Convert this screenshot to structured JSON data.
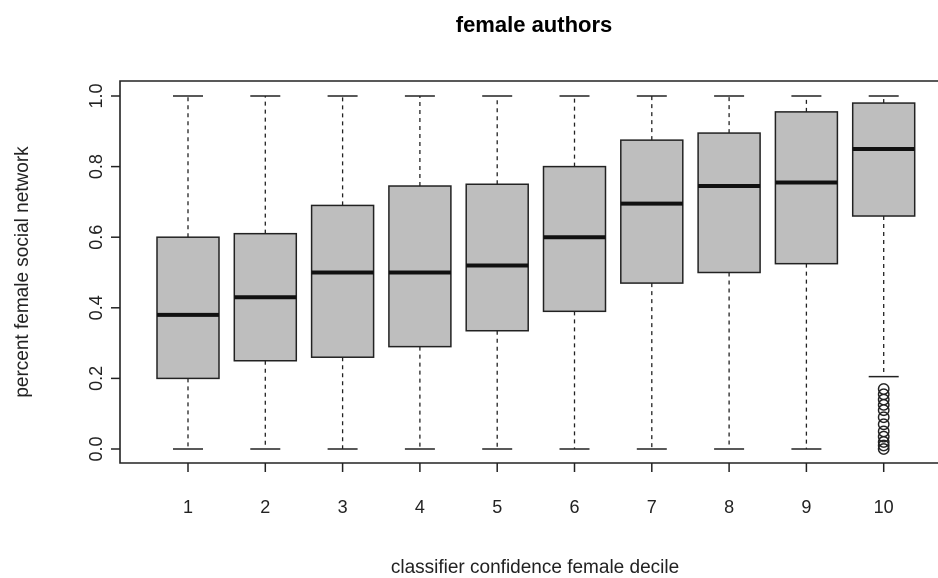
{
  "chart_data": {
    "type": "boxplot",
    "title": "female authors",
    "xlabel": "classifier confidence female decile",
    "ylabel": "percent female social network",
    "ylim": [
      0.0,
      1.0
    ],
    "yticks": [
      "0.0",
      "0.2",
      "0.4",
      "0.6",
      "0.8",
      "1.0"
    ],
    "categories": [
      "1",
      "2",
      "3",
      "4",
      "5",
      "6",
      "7",
      "8",
      "9",
      "10"
    ],
    "grid": false,
    "box_fill": "#bebebe",
    "boxes": [
      {
        "min": 0.0,
        "q1": 0.2,
        "median": 0.38,
        "q3": 0.6,
        "max": 1.0,
        "outliers": []
      },
      {
        "min": 0.0,
        "q1": 0.25,
        "median": 0.43,
        "q3": 0.61,
        "max": 1.0,
        "outliers": []
      },
      {
        "min": 0.0,
        "q1": 0.26,
        "median": 0.5,
        "q3": 0.69,
        "max": 1.0,
        "outliers": []
      },
      {
        "min": 0.0,
        "q1": 0.29,
        "median": 0.5,
        "q3": 0.745,
        "max": 1.0,
        "outliers": []
      },
      {
        "min": 0.0,
        "q1": 0.335,
        "median": 0.52,
        "q3": 0.75,
        "max": 1.0,
        "outliers": []
      },
      {
        "min": 0.0,
        "q1": 0.39,
        "median": 0.6,
        "q3": 0.8,
        "max": 1.0,
        "outliers": []
      },
      {
        "min": 0.0,
        "q1": 0.47,
        "median": 0.695,
        "q3": 0.875,
        "max": 1.0,
        "outliers": []
      },
      {
        "min": 0.0,
        "q1": 0.5,
        "median": 0.745,
        "q3": 0.895,
        "max": 1.0,
        "outliers": []
      },
      {
        "min": 0.0,
        "q1": 0.525,
        "median": 0.755,
        "q3": 0.955,
        "max": 1.0,
        "outliers": []
      },
      {
        "min": 0.205,
        "q1": 0.66,
        "median": 0.85,
        "q3": 0.98,
        "max": 1.0,
        "outliers": [
          0.17,
          0.155,
          0.14,
          0.125,
          0.11,
          0.09,
          0.07,
          0.05,
          0.035,
          0.02,
          0.01,
          0.0
        ]
      }
    ]
  }
}
